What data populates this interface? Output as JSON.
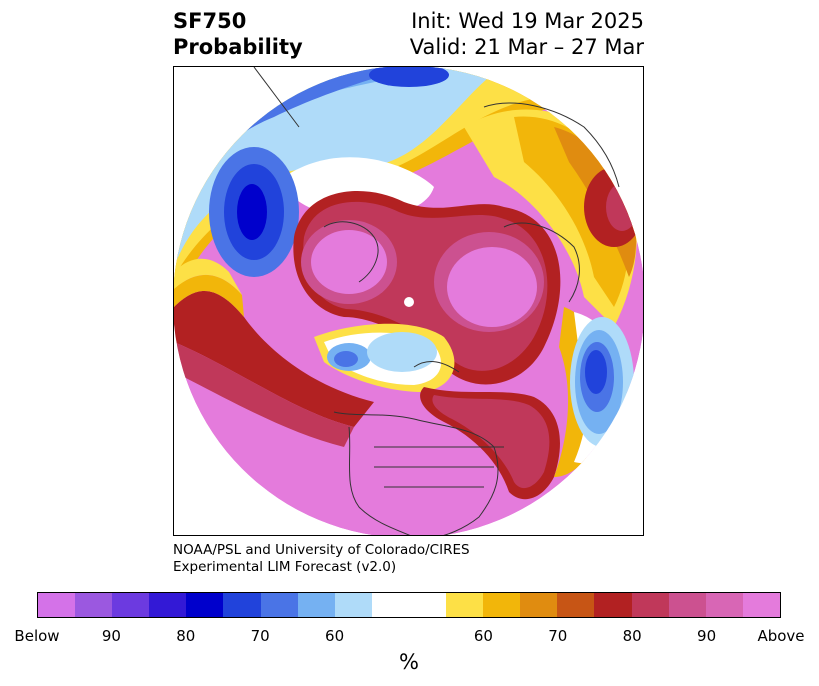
{
  "title": {
    "left_line1": "SF750",
    "left_line2": "Probability",
    "right_line1": "Init: Wed 19 Mar 2025",
    "right_line2": "Valid: 21 Mar – 27 Mar"
  },
  "credit": {
    "line1": "NOAA/PSL and University of Colorado/CIRES",
    "line2": "Experimental LIM Forecast (v2.0)"
  },
  "colorbar": {
    "colors": [
      "#d472e8",
      "#9b58e0",
      "#6c3ae0",
      "#3319d6",
      "#0000cc",
      "#2143db",
      "#4a74e6",
      "#75b1f2",
      "#afdbf9",
      "#ffffff",
      "#ffffff",
      "#fde046",
      "#f2b60a",
      "#e08c10",
      "#c75515",
      "#b22122",
      "#c0385a",
      "#cc5190",
      "#d866b5",
      "#e47bdc"
    ],
    "tick_labels": [
      "Below",
      "90",
      "80",
      "70",
      "60",
      "60",
      "70",
      "80",
      "90",
      "Above"
    ],
    "unit": "%"
  },
  "map": {
    "projection": "north-polar-stereographic",
    "field": "SF750 probability",
    "above_color": "#e47bdc",
    "below_color": "#0000cc"
  }
}
